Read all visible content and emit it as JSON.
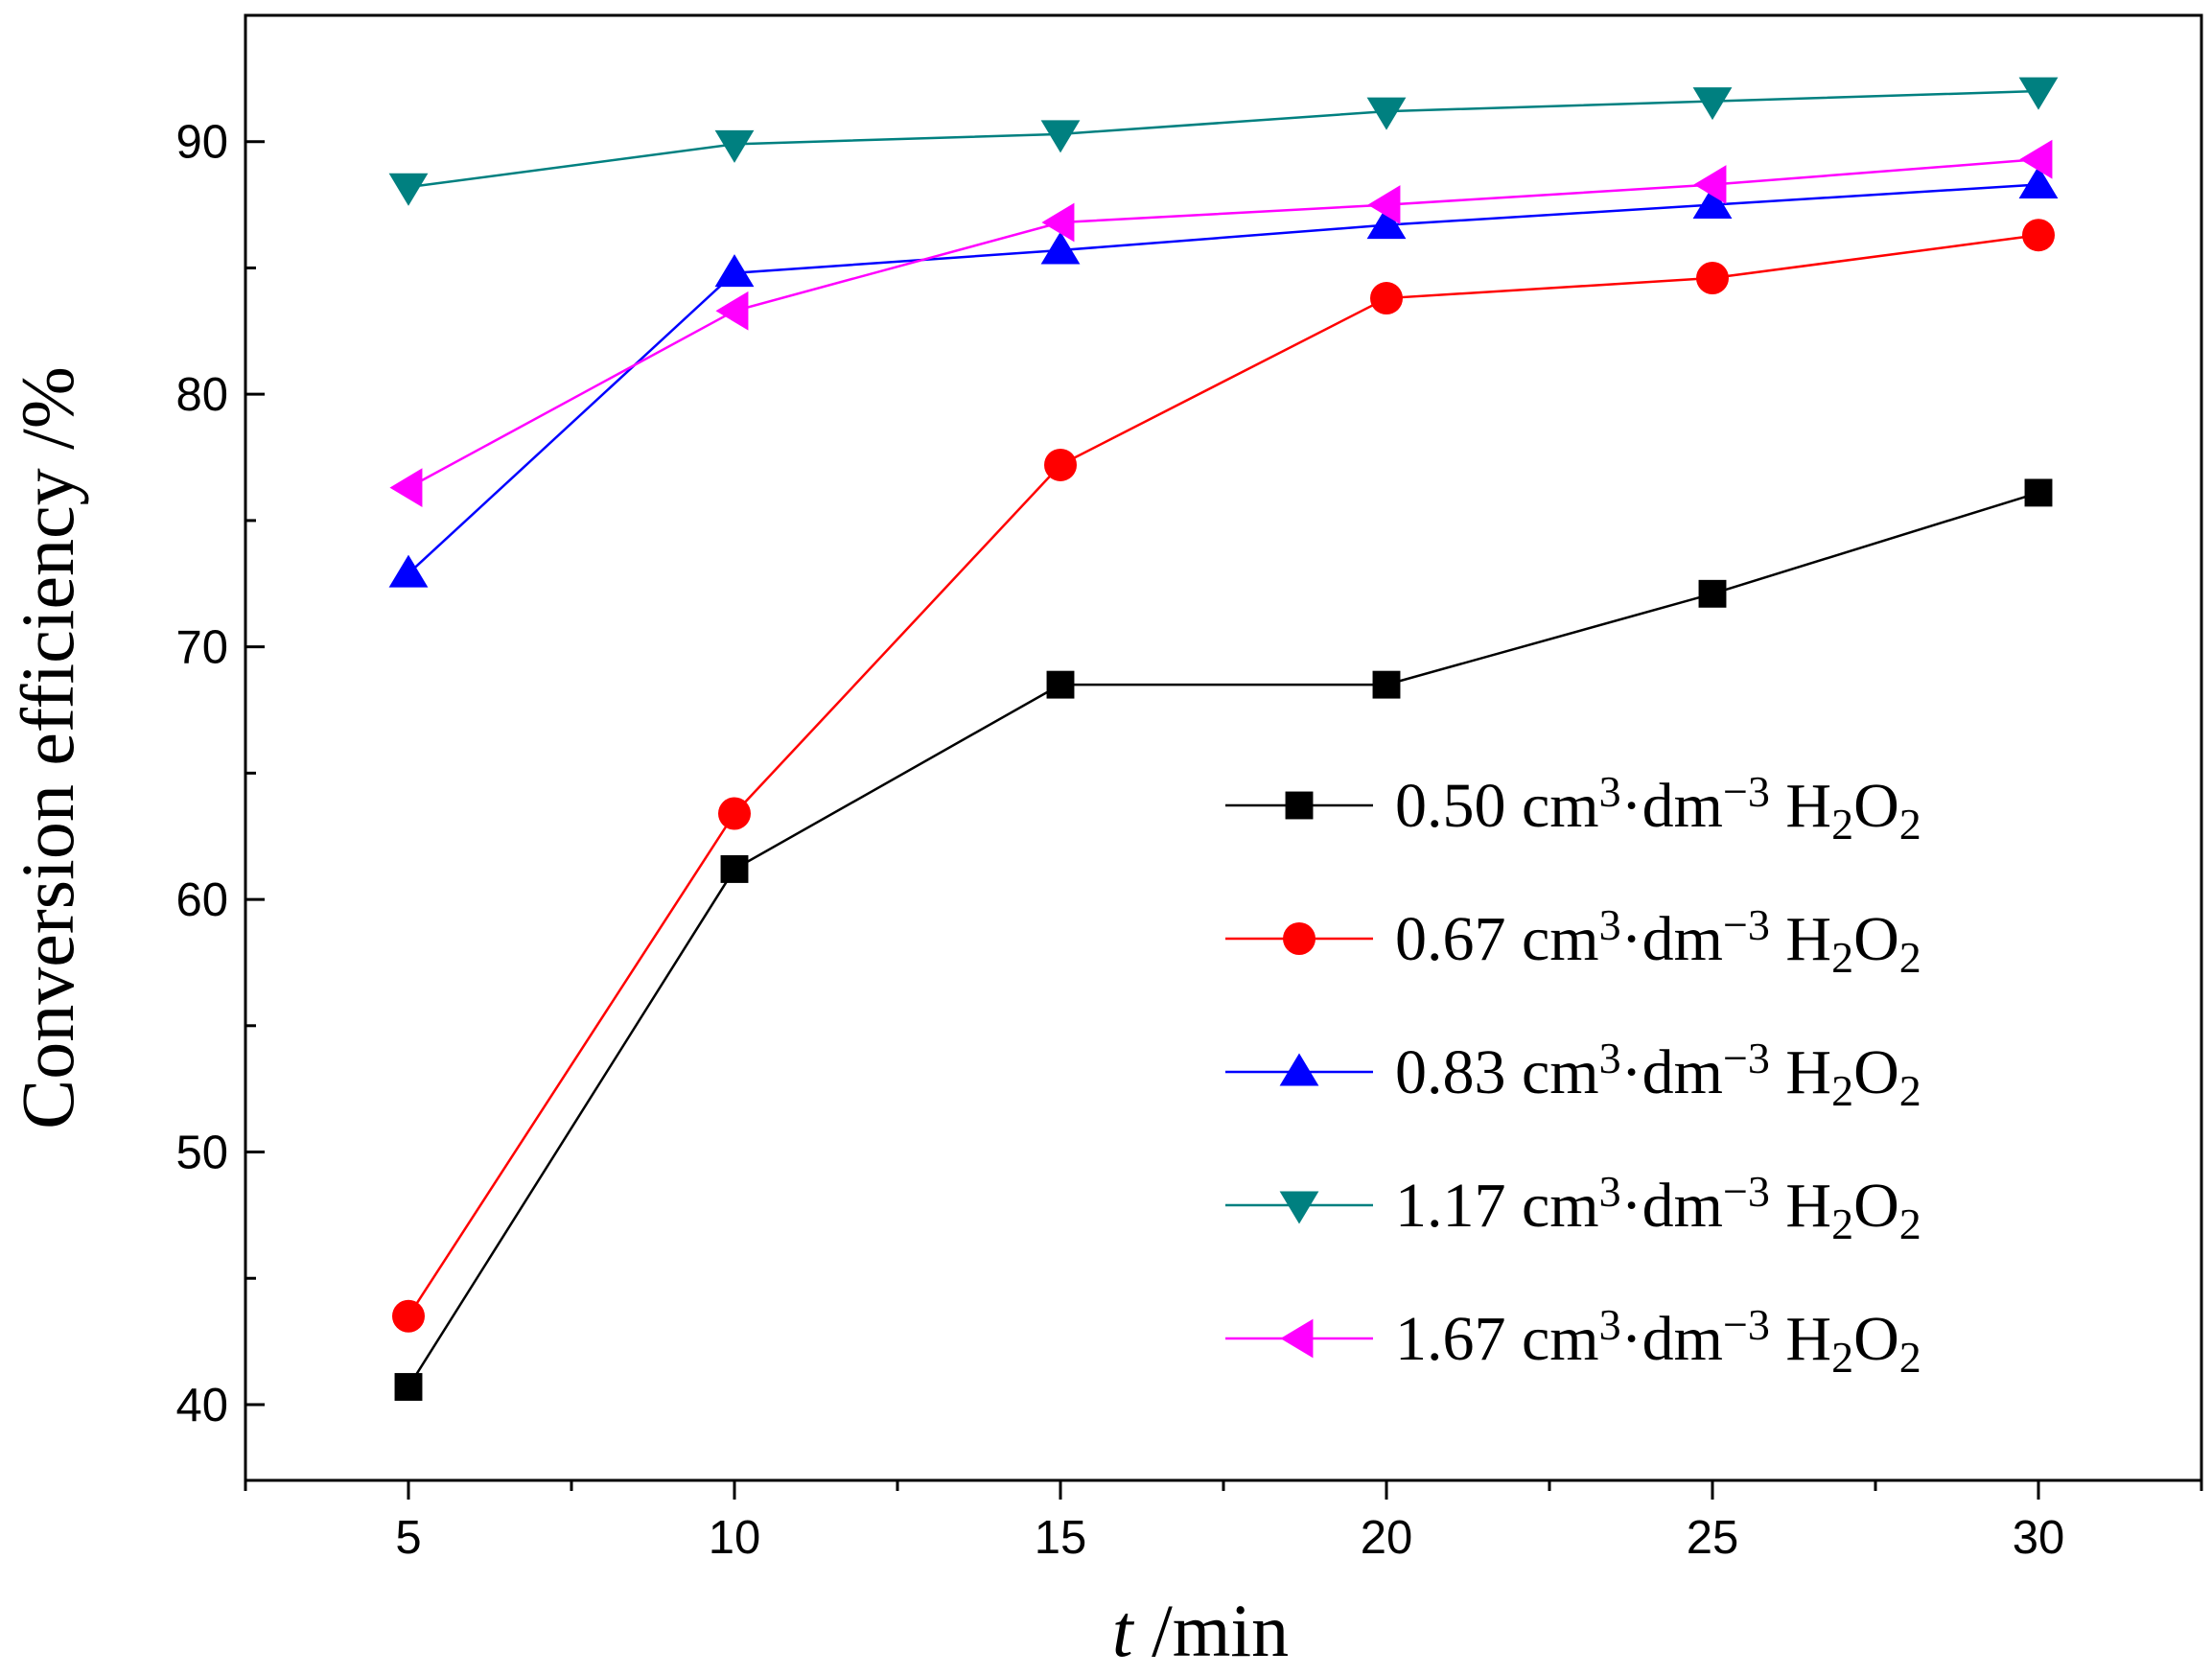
{
  "chart_data": {
    "type": "line",
    "title": "",
    "xlabel": {
      "italic": "t",
      "rest": " /min"
    },
    "ylabel": "Conversion efficiency /%",
    "x": [
      5,
      10,
      15,
      20,
      25,
      30
    ],
    "xlim": [
      2.5,
      32.5
    ],
    "ylim": [
      37,
      95
    ],
    "xticks": [
      5,
      10,
      15,
      20,
      25,
      30
    ],
    "yticks": [
      40,
      50,
      60,
      70,
      80,
      90
    ],
    "grid": false,
    "legend_position": "bottom-right",
    "series": [
      {
        "name": "0.50 cm³·dm⁻³ H₂O₂",
        "label": {
          "value": "0.50",
          "unit": "cm",
          "exp1": "3",
          "dot": "·dm",
          "exp2": "−3",
          "species1": "H",
          "sub1": "2",
          "species2": "O",
          "sub2": "2"
        },
        "color": "#000000",
        "marker": "square",
        "values": [
          40.7,
          61.2,
          68.5,
          68.5,
          72.1,
          76.1
        ]
      },
      {
        "name": "0.67 cm³·dm⁻³ H₂O₂",
        "label": {
          "value": "0.67",
          "unit": "cm",
          "exp1": "3",
          "dot": "·dm",
          "exp2": "−3",
          "species1": "H",
          "sub1": "2",
          "species2": "O",
          "sub2": "2"
        },
        "color": "#ff0000",
        "marker": "circle",
        "values": [
          43.5,
          63.4,
          77.2,
          83.8,
          84.6,
          86.3
        ]
      },
      {
        "name": "0.83 cm³·dm⁻³ H₂O₂",
        "label": {
          "value": "0.83",
          "unit": "cm",
          "exp1": "3",
          "dot": "·dm",
          "exp2": "−3",
          "species1": "H",
          "sub1": "2",
          "species2": "O",
          "sub2": "2"
        },
        "color": "#0000ff",
        "marker": "triangle-up",
        "values": [
          72.9,
          84.8,
          85.7,
          86.7,
          87.5,
          88.3
        ]
      },
      {
        "name": "1.17 cm³·dm⁻³ H₂O₂",
        "label": {
          "value": "1.17",
          "unit": "cm",
          "exp1": "3",
          "dot": "·dm",
          "exp2": "−3",
          "species1": "H",
          "sub1": "2",
          "species2": "O",
          "sub2": "2"
        },
        "color": "#008080",
        "marker": "triangle-down",
        "values": [
          88.2,
          89.9,
          90.3,
          91.2,
          91.6,
          92.0
        ]
      },
      {
        "name": "1.67 cm³·dm⁻³ H₂O₂",
        "label": {
          "value": "1.67",
          "unit": "cm",
          "exp1": "3",
          "dot": "·dm",
          "exp2": "−3",
          "species1": "H",
          "sub1": "2",
          "species2": "O",
          "sub2": "2"
        },
        "color": "#ff00ff",
        "marker": "triangle-left",
        "values": [
          76.3,
          83.3,
          86.8,
          87.5,
          88.3,
          89.3
        ]
      }
    ]
  }
}
